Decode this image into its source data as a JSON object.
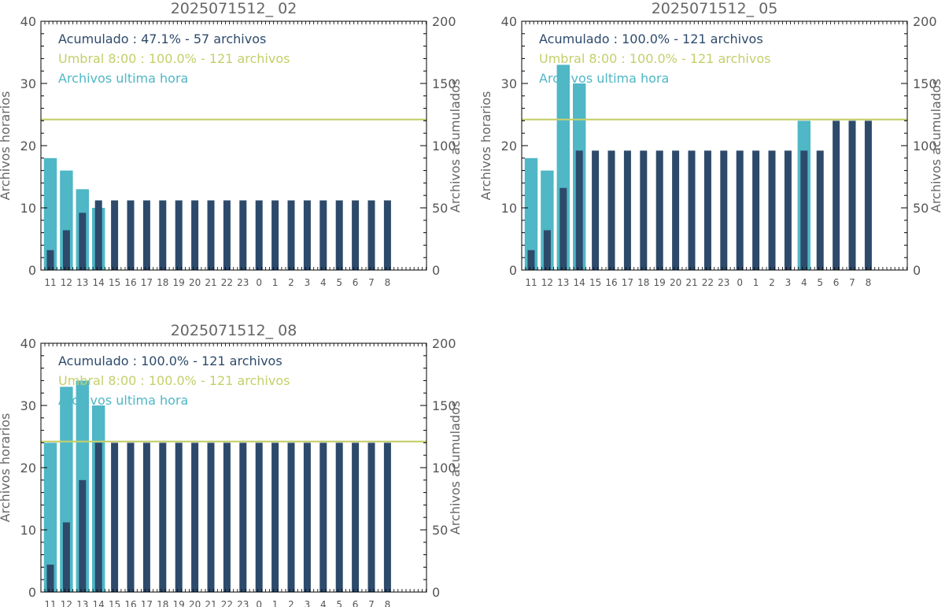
{
  "colors": {
    "hourly": "#4fb7c6",
    "cumulative": "#2d4a6b",
    "threshold": "#c5cf6a",
    "axis": "#000000",
    "title": "#666666",
    "axis_label": "#666666",
    "tick_label": "#555555"
  },
  "chart_data": [
    {
      "type": "bar",
      "title": "2025071512_ 02",
      "ylabel": "Archivos horarios",
      "y2label": "Archivos acumulados",
      "ylim": [
        0,
        40
      ],
      "y2lim": [
        0,
        200
      ],
      "yticks": [
        0,
        10,
        20,
        30,
        40
      ],
      "y2ticks": [
        0,
        50,
        100,
        150,
        200
      ],
      "categories": [
        "11",
        "12",
        "13",
        "14",
        "15",
        "16",
        "17",
        "18",
        "19",
        "20",
        "21",
        "22",
        "23",
        "0",
        "1",
        "2",
        "3",
        "4",
        "5",
        "6",
        "7",
        "8"
      ],
      "series": [
        {
          "name": "Archivos ultima hora",
          "axis": "left",
          "values": [
            18,
            16,
            13,
            10,
            0,
            0,
            0,
            0,
            0,
            0,
            0,
            0,
            0,
            0,
            0,
            0,
            0,
            0,
            0,
            0,
            0,
            0
          ]
        },
        {
          "name": "Acumulado",
          "axis": "right",
          "values": [
            16,
            32,
            46,
            56,
            56,
            56,
            56,
            56,
            56,
            56,
            56,
            56,
            56,
            56,
            56,
            56,
            56,
            56,
            56,
            56,
            56,
            56
          ]
        }
      ],
      "threshold": {
        "axis": "right",
        "value": 121
      },
      "legend": [
        {
          "text": "Acumulado : 47.1% - 57 archivos",
          "color_key": "cumulative"
        },
        {
          "text": "Umbral 8:00 : 100.0% - 121 archivos",
          "color_key": "threshold"
        },
        {
          "text": "Archivos ultima hora",
          "color_key": "hourly"
        }
      ],
      "legend_position": "top-left"
    },
    {
      "type": "bar",
      "title": "2025071512_ 05",
      "ylabel": "Archivos horarios",
      "y2label": "Archivos acumulados",
      "ylim": [
        0,
        40
      ],
      "y2lim": [
        0,
        200
      ],
      "yticks": [
        0,
        10,
        20,
        30,
        40
      ],
      "y2ticks": [
        0,
        50,
        100,
        150,
        200
      ],
      "categories": [
        "11",
        "12",
        "13",
        "14",
        "15",
        "16",
        "17",
        "18",
        "19",
        "20",
        "21",
        "22",
        "23",
        "0",
        "1",
        "2",
        "3",
        "4",
        "5",
        "6",
        "7",
        "8"
      ],
      "series": [
        {
          "name": "Archivos ultima hora",
          "axis": "left",
          "values": [
            18,
            16,
            33,
            30,
            0,
            0,
            0,
            0,
            0,
            0,
            0,
            0,
            0,
            0,
            0,
            0,
            0,
            24,
            0,
            0,
            0,
            0
          ]
        },
        {
          "name": "Acumulado",
          "axis": "right",
          "values": [
            16,
            32,
            66,
            96,
            96,
            96,
            96,
            96,
            96,
            96,
            96,
            96,
            96,
            96,
            96,
            96,
            96,
            96,
            96,
            120,
            120,
            120
          ]
        }
      ],
      "threshold": {
        "axis": "right",
        "value": 121
      },
      "legend": [
        {
          "text": "Acumulado : 100.0% - 121 archivos",
          "color_key": "cumulative"
        },
        {
          "text": "Umbral 8:00 : 100.0% - 121 archivos",
          "color_key": "threshold"
        },
        {
          "text": "Archivos ultima hora",
          "color_key": "hourly"
        }
      ],
      "legend_position": "top-left"
    },
    {
      "type": "bar",
      "title": "2025071512_ 08",
      "ylabel": "Archivos horarios",
      "y2label": "Archivos acumulados",
      "ylim": [
        0,
        40
      ],
      "y2lim": [
        0,
        200
      ],
      "yticks": [
        0,
        10,
        20,
        30,
        40
      ],
      "y2ticks": [
        0,
        50,
        100,
        150,
        200
      ],
      "categories": [
        "11",
        "12",
        "13",
        "14",
        "15",
        "16",
        "17",
        "18",
        "19",
        "20",
        "21",
        "22",
        "23",
        "0",
        "1",
        "2",
        "3",
        "4",
        "5",
        "6",
        "7",
        "8"
      ],
      "series": [
        {
          "name": "Archivos ultima hora",
          "axis": "left",
          "values": [
            24,
            33,
            34,
            30,
            0,
            0,
            0,
            0,
            0,
            0,
            0,
            0,
            0,
            0,
            0,
            0,
            0,
            0,
            0,
            0,
            0,
            0
          ]
        },
        {
          "name": "Acumulado",
          "axis": "right",
          "values": [
            22,
            56,
            90,
            120,
            120,
            120,
            120,
            120,
            120,
            120,
            120,
            120,
            120,
            120,
            120,
            120,
            120,
            120,
            120,
            120,
            120,
            120
          ]
        }
      ],
      "threshold": {
        "axis": "right",
        "value": 121
      },
      "legend": [
        {
          "text": "Acumulado : 100.0% - 121 archivos",
          "color_key": "cumulative"
        },
        {
          "text": "Umbral 8:00 : 100.0% - 121 archivos",
          "color_key": "threshold"
        },
        {
          "text": "Archivos ultima hora",
          "color_key": "hourly"
        }
      ],
      "legend_position": "top-left"
    }
  ]
}
